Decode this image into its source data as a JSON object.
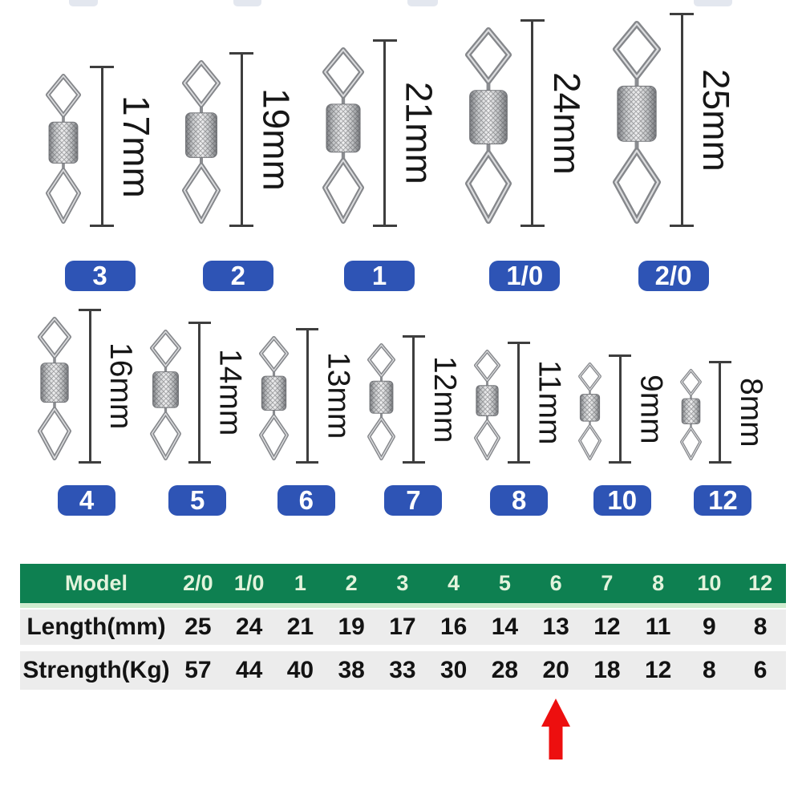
{
  "figures": {
    "unit": "mm",
    "badge_color": "#2e54b5",
    "top_row": [
      {
        "model": "3",
        "length_mm": 17,
        "length_label": "17mm"
      },
      {
        "model": "2",
        "length_mm": 19,
        "length_label": "19mm"
      },
      {
        "model": "1",
        "length_mm": 21,
        "length_label": "21mm"
      },
      {
        "model": "1/0",
        "length_mm": 24,
        "length_label": "24mm"
      },
      {
        "model": "2/0",
        "length_mm": 25,
        "length_label": "25mm"
      }
    ],
    "bottom_row": [
      {
        "model": "4",
        "length_mm": 16,
        "length_label": "16mm"
      },
      {
        "model": "5",
        "length_mm": 14,
        "length_label": "14mm"
      },
      {
        "model": "6",
        "length_mm": 13,
        "length_label": "13mm"
      },
      {
        "model": "7",
        "length_mm": 12,
        "length_label": "12mm"
      },
      {
        "model": "8",
        "length_mm": 11,
        "length_label": "11mm"
      },
      {
        "model": "10",
        "length_mm": 9,
        "length_label": "9mm"
      },
      {
        "model": "12",
        "length_mm": 8,
        "length_label": "8mm"
      }
    ]
  },
  "table": {
    "header_bg": "#0e8051",
    "header_text_color": "#e3f3dc",
    "row_bg": "#ececec",
    "columns": [
      "Model",
      "2/0",
      "1/0",
      "1",
      "2",
      "3",
      "4",
      "5",
      "6",
      "7",
      "8",
      "10",
      "12"
    ],
    "rows": [
      {
        "label": "Length(mm)",
        "values": [
          "25",
          "24",
          "21",
          "19",
          "17",
          "16",
          "14",
          "13",
          "12",
          "11",
          "9",
          "8"
        ]
      },
      {
        "label": "Strength(Kg)",
        "values": [
          "57",
          "44",
          "40",
          "38",
          "33",
          "30",
          "28",
          "20",
          "18",
          "12",
          "8",
          "6"
        ]
      }
    ]
  },
  "annotation": {
    "color": "#ed0f0f",
    "shape": "up-arrow",
    "target_column": "6",
    "target_row": "Strength(Kg)",
    "target_value": "20"
  }
}
